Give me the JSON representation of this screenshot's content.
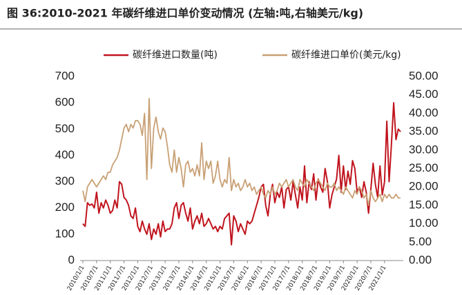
{
  "chart_data": {
    "type": "line",
    "title": "图 36:2010-2021 年碳纤维进口单价变动情况 (左轴:吨,右轴美元/kg)",
    "categories": [
      "2010/1/1",
      null,
      null,
      null,
      null,
      null,
      "2010/7/1",
      null,
      null,
      null,
      null,
      null,
      "2011/1/1",
      null,
      null,
      null,
      null,
      null,
      "2011/7/1",
      null,
      null,
      null,
      null,
      null,
      "2012/1/1",
      null,
      null,
      null,
      null,
      null,
      "2012/7/1",
      null,
      null,
      null,
      null,
      null,
      "2013/1/1",
      null,
      null,
      null,
      null,
      null,
      "2013/7/1",
      null,
      null,
      null,
      null,
      null,
      "2014/1/1",
      null,
      null,
      null,
      null,
      null,
      "2014/7/1",
      null,
      null,
      null,
      null,
      null,
      "2015/1/1",
      null,
      null,
      null,
      null,
      null,
      "2015/7/1",
      null,
      null,
      null,
      null,
      null,
      "2016/1/1",
      null,
      null,
      null,
      null,
      null,
      "2016/7/1",
      null,
      null,
      null,
      null,
      null,
      "2017/1/1",
      null,
      null,
      null,
      null,
      null,
      "2017/7/1",
      null,
      null,
      null,
      null,
      null,
      "2018/1/1",
      null,
      null,
      null,
      null,
      null,
      "2018/7/1",
      null,
      null,
      null,
      null,
      null,
      "2019/1/1",
      null,
      null,
      null,
      null,
      null,
      "2019/7/1",
      null,
      null,
      null,
      null,
      null,
      "2020/1/1",
      null,
      null,
      null,
      null,
      null,
      "2020/7/1",
      null,
      null,
      null,
      null,
      null,
      "2021/1/1",
      null,
      null,
      null,
      null,
      null,
      null,
      null
    ],
    "series": [
      {
        "name": "碳纤维进口数量(吨)",
        "color": "#c0141e",
        "values": [
          140,
          130,
          220,
          210,
          215,
          200,
          260,
          180,
          220,
          200,
          230,
          210,
          180,
          190,
          230,
          200,
          300,
          290,
          240,
          230,
          210,
          170,
          160,
          200,
          130,
          110,
          150,
          120,
          100,
          140,
          80,
          120,
          100,
          140,
          90,
          150,
          110,
          120,
          120,
          140,
          200,
          220,
          160,
          210,
          220,
          180,
          150,
          200,
          120,
          150,
          170,
          140,
          180,
          130,
          140,
          160,
          140,
          120,
          130,
          110,
          130,
          120,
          160,
          170,
          180,
          60,
          170,
          150,
          110,
          140,
          120,
          100,
          150,
          140,
          150,
          180,
          210,
          240,
          280,
          290,
          210,
          170,
          250,
          290,
          220,
          260,
          240,
          280,
          200,
          270,
          280,
          230,
          300,
          250,
          200,
          280,
          230,
          360,
          220,
          300,
          270,
          330,
          230,
          310,
          280,
          260,
          350,
          300,
          200,
          250,
          280,
          310,
          400,
          260,
          360,
          270,
          340,
          290,
          380,
          350,
          260,
          280,
          240,
          300,
          260,
          180,
          270,
          370,
          290,
          240,
          360,
          250,
          300,
          530,
          300,
          440,
          600,
          460,
          500,
          490
        ]
      },
      {
        "name": "碳纤维进口单价(美元/kg)",
        "color": "#c8a074",
        "axis": "y2",
        "values": [
          19,
          16,
          20,
          21,
          22,
          21,
          20,
          21,
          22,
          23,
          22,
          24,
          24,
          26,
          27,
          28,
          30,
          33,
          36,
          37,
          35,
          37,
          36,
          38,
          38,
          37,
          34,
          40,
          22,
          44,
          25,
          36,
          39,
          35,
          33,
          36,
          35,
          31,
          26,
          24,
          30,
          24,
          28,
          25,
          20,
          26,
          27,
          24,
          25,
          23,
          26,
          23,
          32,
          22,
          27,
          25,
          27,
          21,
          23,
          27,
          22,
          20,
          22,
          21,
          28,
          19,
          22,
          20,
          21,
          19,
          20,
          22,
          20,
          21,
          19,
          20,
          18,
          19,
          20,
          18,
          17,
          19,
          18,
          20,
          18,
          19,
          21,
          20,
          21,
          22,
          20,
          21,
          22,
          20,
          19,
          22,
          21,
          20,
          22,
          21,
          20,
          19,
          21,
          22,
          21,
          20,
          19,
          21,
          20,
          20,
          21,
          19,
          20,
          19,
          18,
          20,
          19,
          18,
          17,
          19,
          18,
          20,
          19,
          17,
          18,
          15,
          19,
          17,
          16,
          17,
          18,
          16,
          18,
          17,
          18,
          17,
          17,
          18,
          17,
          17
        ]
      }
    ],
    "ylim": [
      0,
      700
    ],
    "yticks": [
      0,
      100,
      200,
      300,
      400,
      500,
      600,
      700
    ],
    "y2lim": [
      0,
      50
    ],
    "y2ticks": [
      {
        "value": 0,
        "label": "0.00"
      },
      {
        "value": 5,
        "label": "5.00"
      },
      {
        "value": 10,
        "label": "10.00"
      },
      {
        "value": 15,
        "label": "15.00"
      },
      {
        "value": 20,
        "label": "20.00"
      },
      {
        "value": 25,
        "label": "25.00"
      },
      {
        "value": 30,
        "label": "30.00"
      },
      {
        "value": 35,
        "label": "35.00"
      },
      {
        "value": 40,
        "label": "40.00"
      },
      {
        "value": 45,
        "label": "45.00"
      },
      {
        "value": 50,
        "label": "50.00"
      }
    ],
    "legend": "top"
  }
}
